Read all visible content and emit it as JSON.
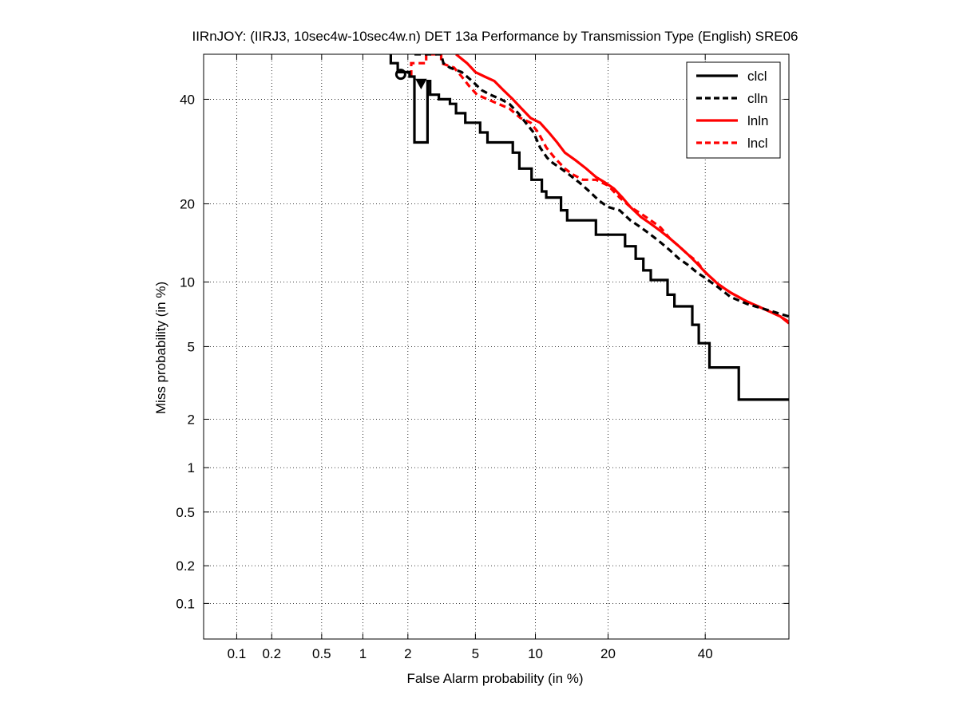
{
  "chart_data": {
    "type": "line",
    "scale": "det-normal-deviate",
    "title": "IIRnJOY: (IIRJ3, 10sec4w-10sec4w.n) DET 13a Performance by Transmission Type (English) SRE06",
    "xlabel": "False Alarm probability (in %)",
    "ylabel": "Miss probability (in %)",
    "xlim": [
      0.05,
      60
    ],
    "ylim": [
      0.05,
      50
    ],
    "xticks": [
      {
        "value": 0.1,
        "label": "0.1"
      },
      {
        "value": 0.2,
        "label": "0.2"
      },
      {
        "value": 0.5,
        "label": "0.5"
      },
      {
        "value": 1,
        "label": "1"
      },
      {
        "value": 2,
        "label": "2"
      },
      {
        "value": 5,
        "label": "5"
      },
      {
        "value": 10,
        "label": "10"
      },
      {
        "value": 20,
        "label": "20"
      },
      {
        "value": 40,
        "label": "40"
      }
    ],
    "yticks": [
      {
        "value": 0.1,
        "label": "0.1"
      },
      {
        "value": 0.2,
        "label": "0.2"
      },
      {
        "value": 0.5,
        "label": "0.5"
      },
      {
        "value": 1,
        "label": "1"
      },
      {
        "value": 2,
        "label": "2"
      },
      {
        "value": 5,
        "label": "5"
      },
      {
        "value": 10,
        "label": "10"
      },
      {
        "value": 20,
        "label": "20"
      },
      {
        "value": 40,
        "label": "40"
      }
    ],
    "grid": true,
    "legend_position": "top-right",
    "series": [
      {
        "name": "clcl",
        "color": "#000000",
        "style": "solid",
        "points": [
          [
            1.55,
            50
          ],
          [
            1.55,
            48
          ],
          [
            1.72,
            48
          ],
          [
            1.72,
            46
          ],
          [
            2.05,
            46
          ],
          [
            2.05,
            45
          ],
          [
            2.2,
            45
          ],
          [
            2.2,
            31
          ],
          [
            2.65,
            31
          ],
          [
            2.65,
            44
          ],
          [
            2.75,
            44
          ],
          [
            2.75,
            41
          ],
          [
            3.1,
            41
          ],
          [
            3.1,
            40
          ],
          [
            3.6,
            40
          ],
          [
            3.6,
            39
          ],
          [
            3.9,
            39
          ],
          [
            3.9,
            37
          ],
          [
            4.4,
            37
          ],
          [
            4.4,
            35
          ],
          [
            5.3,
            35
          ],
          [
            5.3,
            33
          ],
          [
            5.8,
            33
          ],
          [
            5.8,
            31
          ],
          [
            7.8,
            31
          ],
          [
            7.8,
            29
          ],
          [
            8.4,
            29
          ],
          [
            8.4,
            26
          ],
          [
            9.6,
            26
          ],
          [
            9.6,
            24
          ],
          [
            10.7,
            24
          ],
          [
            10.7,
            22
          ],
          [
            11.2,
            22
          ],
          [
            11.2,
            21
          ],
          [
            13,
            21
          ],
          [
            13,
            19
          ],
          [
            13.8,
            19
          ],
          [
            13.8,
            17.5
          ],
          [
            18,
            17.5
          ],
          [
            18,
            15.5
          ],
          [
            23,
            15.5
          ],
          [
            23,
            14
          ],
          [
            25,
            14
          ],
          [
            25,
            12.5
          ],
          [
            26.5,
            12.5
          ],
          [
            26.5,
            11.2
          ],
          [
            28,
            11.2
          ],
          [
            28,
            10.2
          ],
          [
            31.5,
            10.2
          ],
          [
            31.5,
            8.8
          ],
          [
            33,
            8.8
          ],
          [
            33,
            7.8
          ],
          [
            37,
            7.8
          ],
          [
            37,
            6.4
          ],
          [
            38.5,
            6.4
          ],
          [
            38.5,
            5.2
          ],
          [
            41,
            5.2
          ],
          [
            41,
            3.9
          ],
          [
            48,
            3.9
          ],
          [
            48,
            2.6
          ],
          [
            60,
            2.6
          ]
        ]
      },
      {
        "name": "clln",
        "color": "#000000",
        "style": "dashed",
        "points": [
          [
            2.2,
            50
          ],
          [
            2.6,
            50
          ],
          [
            3.2,
            50
          ],
          [
            3.3,
            48
          ],
          [
            3.6,
            47
          ],
          [
            4.2,
            46
          ],
          [
            4.8,
            44
          ],
          [
            5.4,
            42
          ],
          [
            6,
            41
          ],
          [
            6.8,
            40
          ],
          [
            7.5,
            39
          ],
          [
            8.3,
            37
          ],
          [
            9,
            35
          ],
          [
            9.8,
            33
          ],
          [
            10.5,
            30
          ],
          [
            11.3,
            28
          ],
          [
            12,
            27
          ],
          [
            13,
            26
          ],
          [
            14,
            25
          ],
          [
            15.5,
            23.5
          ],
          [
            17,
            22
          ],
          [
            18.5,
            20.5
          ],
          [
            20,
            19.5
          ],
          [
            22,
            19
          ],
          [
            24,
            17.5
          ],
          [
            26,
            16.5
          ],
          [
            28,
            15.5
          ],
          [
            30,
            14.5
          ],
          [
            32,
            13.5
          ],
          [
            34,
            12.5
          ],
          [
            36,
            11.8
          ],
          [
            38,
            11
          ],
          [
            40,
            10.4
          ],
          [
            43,
            9.5
          ],
          [
            46,
            8.6
          ],
          [
            50,
            8
          ],
          [
            54,
            7.6
          ],
          [
            58,
            7.2
          ],
          [
            60,
            7
          ]
        ]
      },
      {
        "name": "lnln",
        "color": "#ff0000",
        "style": "solid",
        "points": [
          [
            3.9,
            50
          ],
          [
            4.5,
            48
          ],
          [
            5,
            46
          ],
          [
            5.6,
            45
          ],
          [
            6.3,
            44
          ],
          [
            7,
            42
          ],
          [
            7.8,
            40
          ],
          [
            8.6,
            38
          ],
          [
            9.5,
            36
          ],
          [
            10.5,
            35
          ],
          [
            11.5,
            33
          ],
          [
            12.5,
            31
          ],
          [
            13.5,
            29
          ],
          [
            15,
            27.5
          ],
          [
            16.5,
            26
          ],
          [
            18,
            24.5
          ],
          [
            19.5,
            23.5
          ],
          [
            21,
            22.5
          ],
          [
            22.5,
            21
          ],
          [
            24,
            19.5
          ],
          [
            26,
            18
          ],
          [
            28,
            17
          ],
          [
            30,
            16
          ],
          [
            32,
            15
          ],
          [
            34,
            14
          ],
          [
            36,
            13
          ],
          [
            38,
            12
          ],
          [
            40,
            11
          ],
          [
            43,
            9.8
          ],
          [
            46,
            9
          ],
          [
            50,
            8.2
          ],
          [
            54,
            7.6
          ],
          [
            58,
            7
          ],
          [
            60,
            6.5
          ]
        ]
      },
      {
        "name": "lncl",
        "color": "#ff0000",
        "style": "dashed",
        "points": [
          [
            2.1,
            45
          ],
          [
            2.1,
            48
          ],
          [
            2.6,
            48
          ],
          [
            2.6,
            50
          ],
          [
            3.2,
            50
          ],
          [
            3.2,
            48
          ],
          [
            3.8,
            47
          ],
          [
            4.2,
            45
          ],
          [
            4.6,
            43
          ],
          [
            5.1,
            41
          ],
          [
            5.8,
            40
          ],
          [
            6.6,
            39
          ],
          [
            7.5,
            38
          ],
          [
            8.5,
            36
          ],
          [
            9.5,
            35
          ],
          [
            10.3,
            33
          ],
          [
            11.2,
            30
          ],
          [
            12.2,
            28
          ],
          [
            13.5,
            26
          ],
          [
            14.5,
            25
          ],
          [
            16,
            24
          ],
          [
            18,
            24
          ],
          [
            20,
            23
          ],
          [
            22,
            21
          ],
          [
            24,
            19.5
          ],
          [
            26,
            18.5
          ],
          [
            28,
            17.5
          ],
          [
            30,
            16.5
          ],
          [
            32,
            15
          ],
          [
            34,
            14
          ],
          [
            36,
            13
          ],
          [
            38,
            12.2
          ],
          [
            40,
            11
          ],
          [
            43,
            9.8
          ],
          [
            46,
            9
          ],
          [
            50,
            8.2
          ],
          [
            54,
            7.6
          ],
          [
            58,
            7
          ],
          [
            60,
            6.6
          ]
        ]
      }
    ],
    "markers": [
      {
        "series": "clcl",
        "shape": "circle",
        "x": 1.8,
        "y": 45.5
      },
      {
        "series": "clln",
        "shape": "triangle-down",
        "x": 2.42,
        "y": 43.5
      }
    ]
  }
}
